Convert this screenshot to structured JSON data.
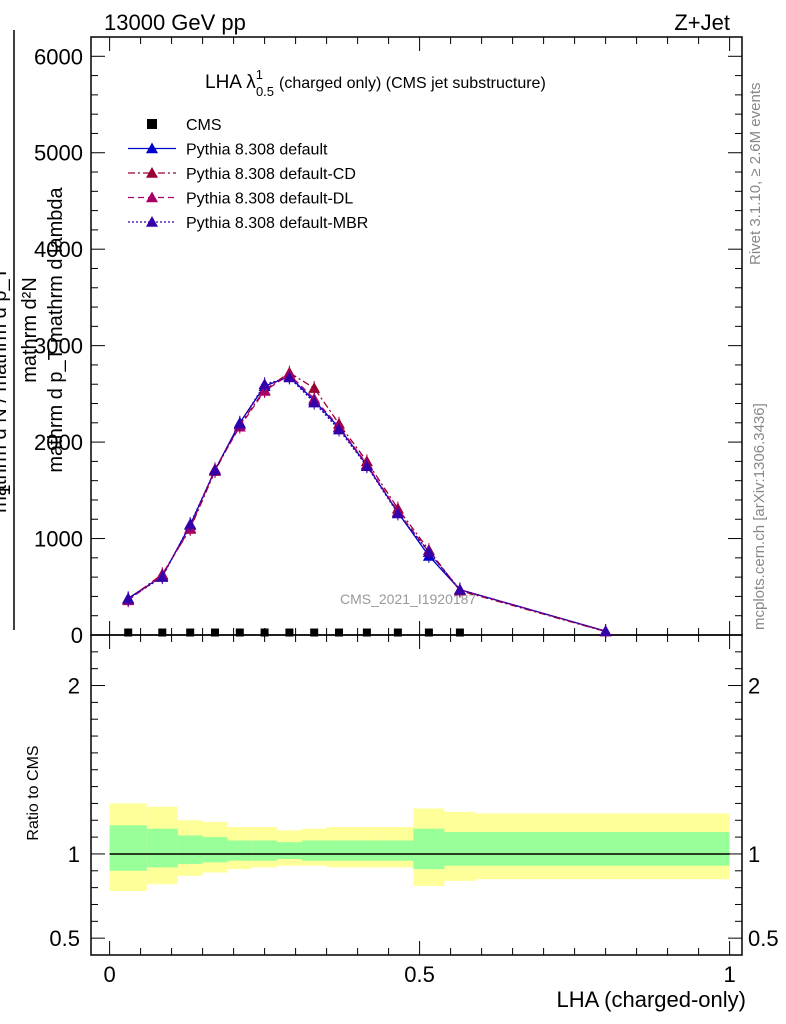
{
  "header": {
    "left": "13000 GeV pp",
    "right": "Z+Jet"
  },
  "plot_title": {
    "main": "LHA λ",
    "sup": "1",
    "sub": "0.5",
    "rest": "(charged only) (CMS jet substructure)"
  },
  "side_labels": {
    "rivet": "Rivet 3.1.10, ≥ 2.6M events",
    "mcplots": "mcplots.cern.ch [arXiv:1306.3436]"
  },
  "watermark": "CMS_2021_I1920187",
  "y_axis_label": {
    "numerator_line1": "mathrm d²N",
    "numerator_line2": "mathrm d p_T mathrm d lambda",
    "one": "1",
    "denominator": "mathrm d N / mathrm d p_T"
  },
  "x_axis_label": "LHA (charged-only)",
  "ratio_y_label": "Ratio to CMS",
  "colors": {
    "default": "#0000cc",
    "cd": "#990033",
    "dl": "#aa0066",
    "mbr": "#3300aa",
    "band_outer": "#ffff99",
    "band_inner": "#99ff99"
  },
  "legend": [
    {
      "key": "cms",
      "label": "CMS"
    },
    {
      "key": "default",
      "label": "Pythia 8.308 default"
    },
    {
      "key": "cd",
      "label": "Pythia 8.308 default-CD"
    },
    {
      "key": "dl",
      "label": "Pythia 8.308 default-DL"
    },
    {
      "key": "mbr",
      "label": "Pythia 8.308 default-MBR"
    }
  ],
  "chart_data": {
    "type": "line",
    "x": [
      0.03,
      0.085,
      0.13,
      0.17,
      0.21,
      0.25,
      0.29,
      0.33,
      0.37,
      0.415,
      0.465,
      0.515,
      0.565,
      0.8
    ],
    "xlim": [
      -0.03,
      1.02
    ],
    "ylim": [
      0,
      6200
    ],
    "xticks": [
      {
        "v": 0,
        "label": "0"
      },
      {
        "v": 0.5,
        "label": "0.5"
      },
      {
        "v": 1,
        "label": "1"
      }
    ],
    "yticks": [
      {
        "v": 0,
        "label": "0"
      },
      {
        "v": 1000,
        "label": "1000"
      },
      {
        "v": 2000,
        "label": "2000"
      },
      {
        "v": 3000,
        "label": "3000"
      },
      {
        "v": 4000,
        "label": "4000"
      },
      {
        "v": 5000,
        "label": "5000"
      },
      {
        "v": 6000,
        "label": "6000"
      }
    ],
    "cms_x": [
      0.03,
      0.085,
      0.13,
      0.17,
      0.21,
      0.25,
      0.29,
      0.33,
      0.37,
      0.415,
      0.465,
      0.515,
      0.565
    ],
    "cms_values": [
      5,
      5,
      5,
      5,
      5,
      5,
      5,
      5,
      5,
      5,
      5,
      5,
      5
    ],
    "series": [
      {
        "name": "Pythia 8.308 default",
        "key": "default",
        "dash": "",
        "values": [
          380,
          610,
          1140,
          1710,
          2200,
          2580,
          2680,
          2430,
          2150,
          1760,
          1270,
          820,
          470,
          40
        ]
      },
      {
        "name": "Pythia 8.308 default-CD",
        "key": "cd",
        "dash": "7,3,2,3",
        "values": [
          370,
          630,
          1100,
          1700,
          2180,
          2540,
          2720,
          2560,
          2190,
          1800,
          1310,
          880,
          460,
          35
        ]
      },
      {
        "name": "Pythia 8.308 default-DL",
        "key": "dl",
        "dash": "6,4",
        "values": [
          360,
          620,
          1110,
          1720,
          2160,
          2530,
          2700,
          2450,
          2160,
          1770,
          1280,
          860,
          470,
          38
        ]
      },
      {
        "name": "Pythia 8.308 default-MBR",
        "key": "mbr",
        "dash": "2,2",
        "values": [
          375,
          600,
          1150,
          1710,
          2190,
          2600,
          2670,
          2410,
          2130,
          1750,
          1260,
          860,
          470,
          40
        ]
      }
    ],
    "ratio": {
      "ylim": [
        0.4,
        2.3
      ],
      "yticks": [
        {
          "v": 0.5,
          "label": "0.5"
        },
        {
          "v": 1,
          "label": "1"
        },
        {
          "v": 2,
          "label": "2"
        }
      ],
      "bands": [
        {
          "x0": 0.0,
          "x1": 0.06,
          "outer": [
            0.78,
            1.3
          ],
          "inner": [
            0.9,
            1.17
          ]
        },
        {
          "x0": 0.06,
          "x1": 0.11,
          "outer": [
            0.82,
            1.28
          ],
          "inner": [
            0.92,
            1.15
          ]
        },
        {
          "x0": 0.11,
          "x1": 0.15,
          "outer": [
            0.87,
            1.2
          ],
          "inner": [
            0.94,
            1.11
          ]
        },
        {
          "x0": 0.15,
          "x1": 0.19,
          "outer": [
            0.89,
            1.19
          ],
          "inner": [
            0.95,
            1.1
          ]
        },
        {
          "x0": 0.19,
          "x1": 0.23,
          "outer": [
            0.91,
            1.16
          ],
          "inner": [
            0.96,
            1.08
          ]
        },
        {
          "x0": 0.23,
          "x1": 0.27,
          "outer": [
            0.92,
            1.16
          ],
          "inner": [
            0.96,
            1.08
          ]
        },
        {
          "x0": 0.27,
          "x1": 0.31,
          "outer": [
            0.93,
            1.14
          ],
          "inner": [
            0.97,
            1.07
          ]
        },
        {
          "x0": 0.31,
          "x1": 0.35,
          "outer": [
            0.93,
            1.15
          ],
          "inner": [
            0.96,
            1.08
          ]
        },
        {
          "x0": 0.35,
          "x1": 0.39,
          "outer": [
            0.92,
            1.16
          ],
          "inner": [
            0.96,
            1.08
          ]
        },
        {
          "x0": 0.39,
          "x1": 0.44,
          "outer": [
            0.92,
            1.16
          ],
          "inner": [
            0.96,
            1.08
          ]
        },
        {
          "x0": 0.44,
          "x1": 0.49,
          "outer": [
            0.92,
            1.16
          ],
          "inner": [
            0.96,
            1.08
          ]
        },
        {
          "x0": 0.49,
          "x1": 0.54,
          "outer": [
            0.81,
            1.27
          ],
          "inner": [
            0.91,
            1.15
          ]
        },
        {
          "x0": 0.54,
          "x1": 0.59,
          "outer": [
            0.84,
            1.25
          ],
          "inner": [
            0.93,
            1.13
          ]
        },
        {
          "x0": 0.59,
          "x1": 1.0,
          "outer": [
            0.85,
            1.24
          ],
          "inner": [
            0.93,
            1.13
          ]
        }
      ]
    }
  }
}
